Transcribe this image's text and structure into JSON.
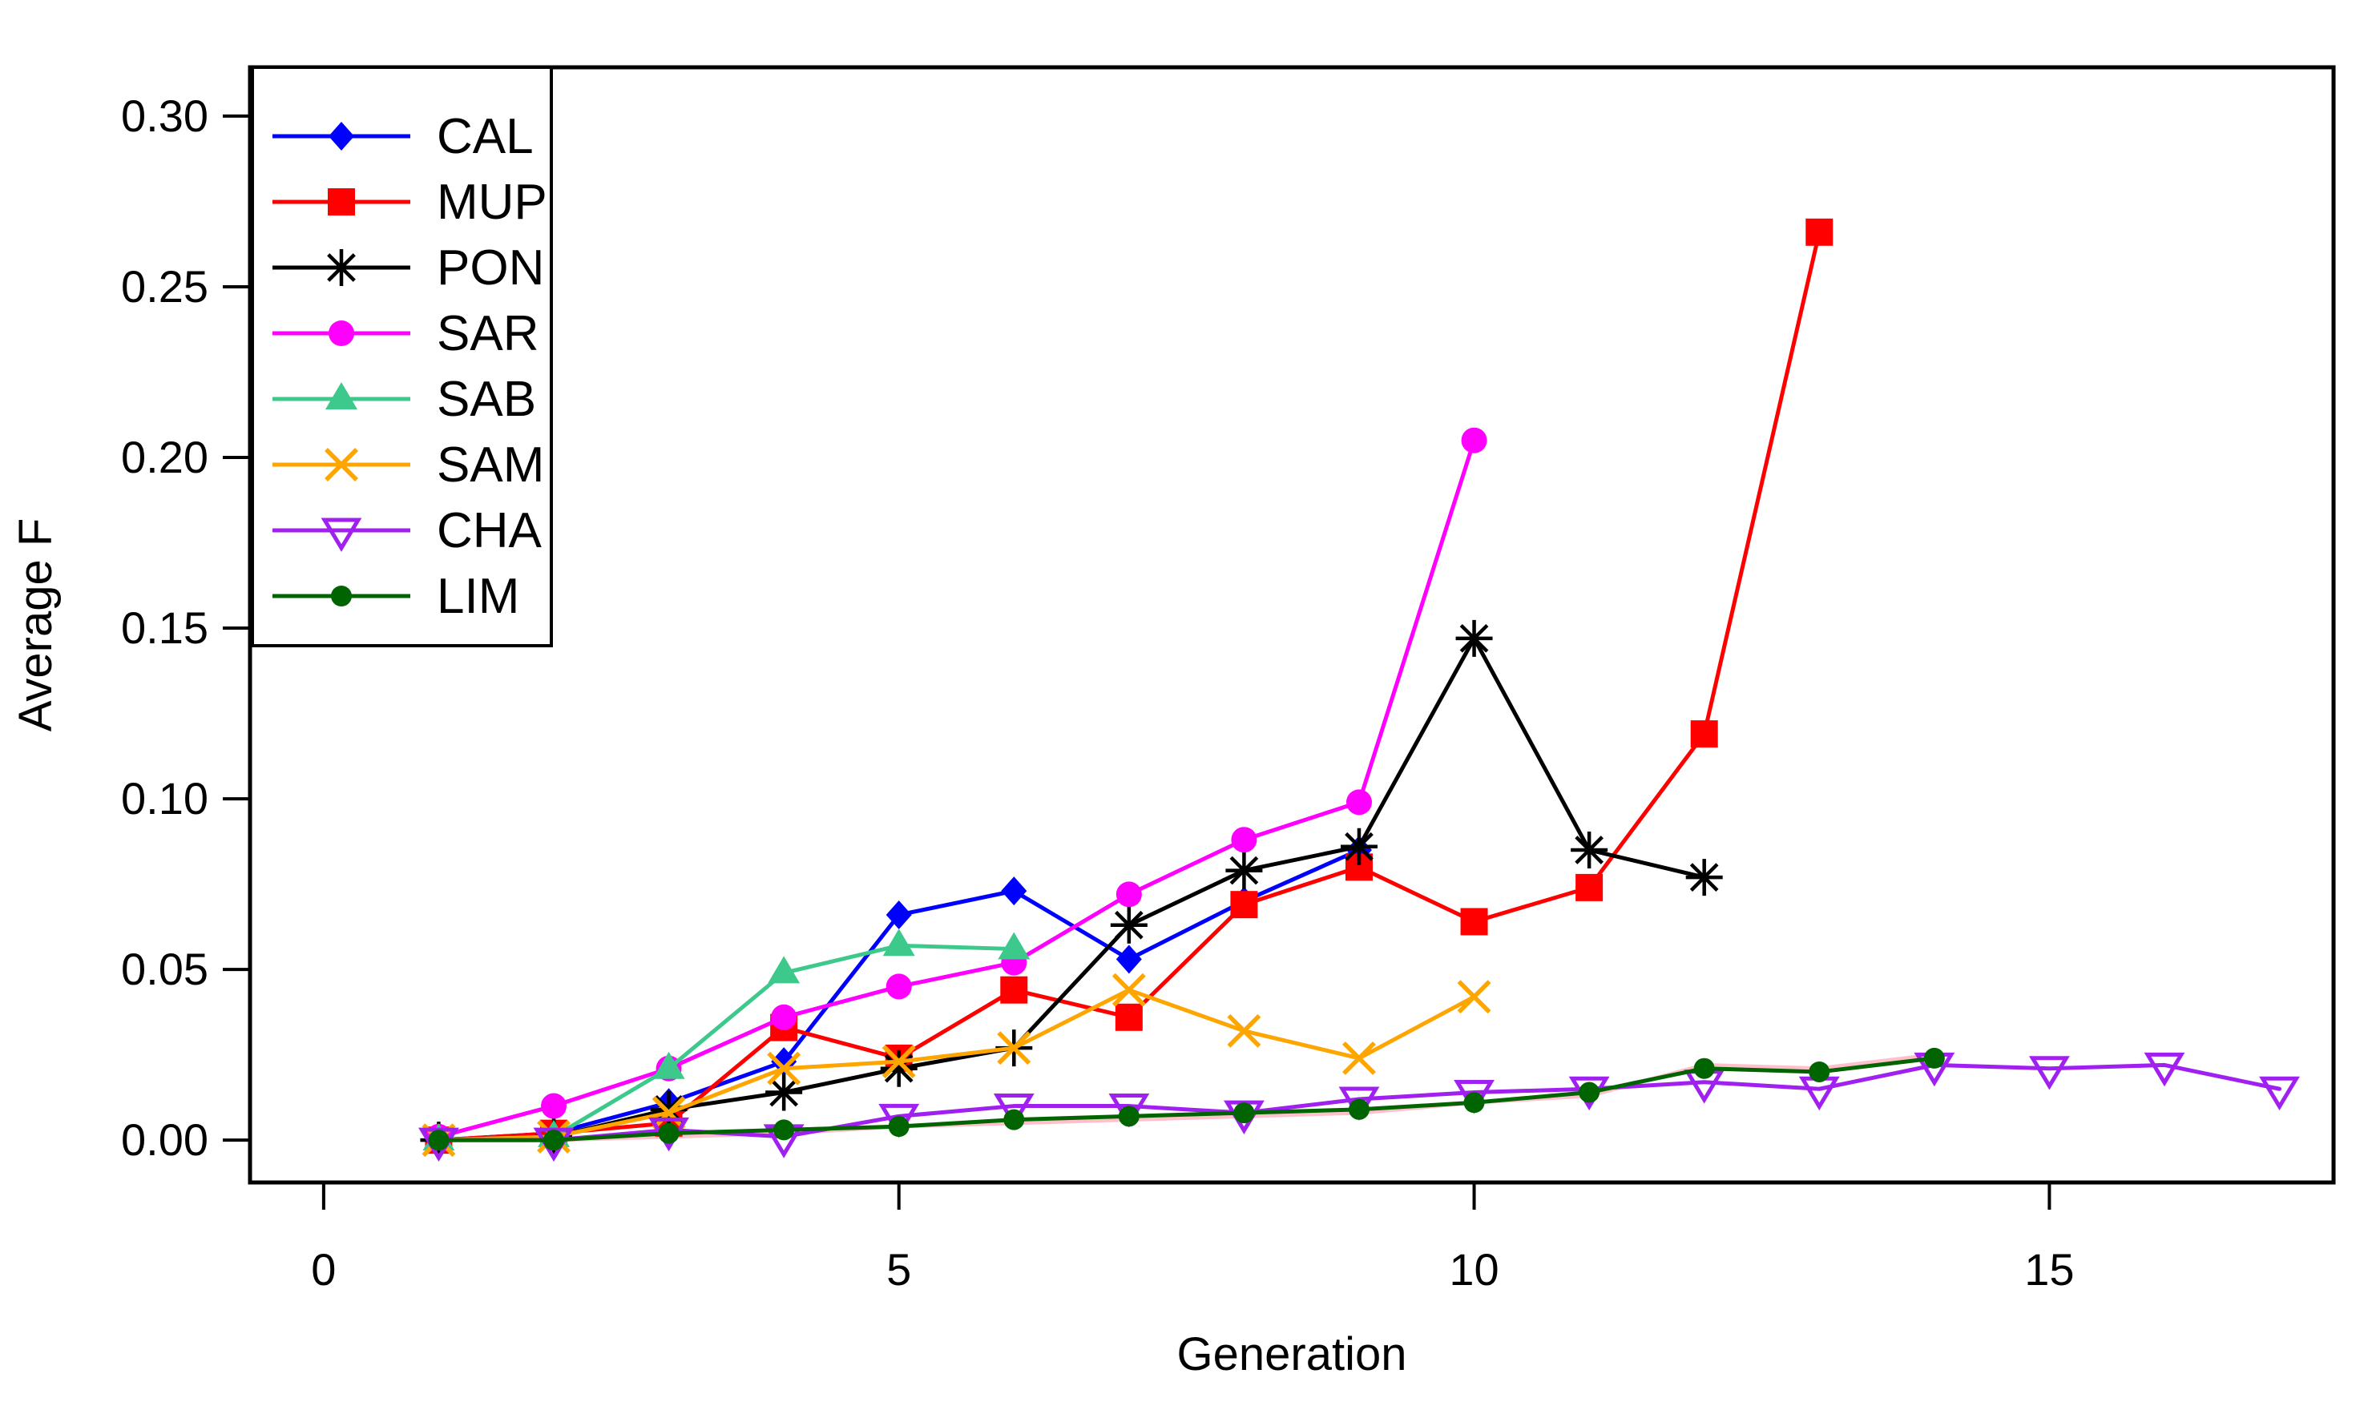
{
  "figure": {
    "background": "#ffffff",
    "axis_color": "#000000"
  },
  "chart_data": {
    "type": "line",
    "title": "",
    "xlabel": "Generation",
    "ylabel": "Average F",
    "xlim": [
      -0.64,
      17.47
    ],
    "ylim": [
      -0.0124,
      0.3143
    ],
    "grid": false,
    "legend_position": "top-left",
    "x_ticks": [
      {
        "value": 0,
        "label": "0"
      },
      {
        "value": 5,
        "label": "5"
      },
      {
        "value": 10,
        "label": "10"
      },
      {
        "value": 15,
        "label": "15"
      }
    ],
    "y_ticks": [
      {
        "value": 0.0,
        "label": "0.00"
      },
      {
        "value": 0.05,
        "label": "0.05"
      },
      {
        "value": 0.1,
        "label": "0.10"
      },
      {
        "value": 0.15,
        "label": "0.15"
      },
      {
        "value": 0.2,
        "label": "0.20"
      },
      {
        "value": 0.25,
        "label": "0.25"
      },
      {
        "value": 0.3,
        "label": "0.30"
      }
    ],
    "series": [
      {
        "name": "CAL",
        "color": "#0000FF",
        "marker": "diamond",
        "in_legend": true,
        "x": [
          1,
          2,
          3,
          4,
          5,
          6,
          7,
          8,
          9
        ],
        "values": [
          0.0,
          0.002,
          0.011,
          0.023,
          0.066,
          0.073,
          0.053,
          0.07,
          0.085
        ]
      },
      {
        "name": "MUP",
        "color": "#FF0000",
        "marker": "square",
        "in_legend": true,
        "x": [
          1,
          2,
          3,
          4,
          5,
          6,
          7,
          8,
          9,
          10,
          11,
          12,
          13
        ],
        "values": [
          0.0,
          0.002,
          0.005,
          0.033,
          0.024,
          0.044,
          0.036,
          0.069,
          0.08,
          0.064,
          0.074,
          0.119,
          0.266
        ]
      },
      {
        "name": "PON",
        "color": "#000000",
        "marker": "asterisk",
        "in_legend": true,
        "x": [
          1,
          2,
          3,
          4,
          5,
          6,
          7,
          8,
          9,
          10,
          11,
          12
        ],
        "values": [
          0.0,
          0.001,
          0.009,
          0.014,
          0.021,
          0.027,
          0.063,
          0.079,
          0.086,
          0.147,
          0.085,
          0.077
        ]
      },
      {
        "name": "SAR",
        "color": "#FF00FF",
        "marker": "circle",
        "in_legend": true,
        "x": [
          1,
          2,
          3,
          4,
          5,
          6,
          7,
          8,
          9,
          10
        ],
        "values": [
          0.001,
          0.01,
          0.021,
          0.036,
          0.045,
          0.052,
          0.072,
          0.088,
          0.099,
          0.205
        ]
      },
      {
        "name": "SAB",
        "color": "#3DC98B",
        "marker": "triangle-up",
        "in_legend": true,
        "x": [
          1,
          2,
          3,
          4,
          5,
          6
        ],
        "values": [
          0.0,
          0.001,
          0.021,
          0.049,
          0.057,
          0.056
        ]
      },
      {
        "name": "SAM",
        "color": "#FFA500",
        "marker": "x-cross",
        "in_legend": true,
        "x": [
          1,
          2,
          3,
          4,
          5,
          6,
          7,
          8,
          9,
          10
        ],
        "values": [
          0.0,
          0.001,
          0.008,
          0.021,
          0.023,
          0.027,
          0.044,
          0.032,
          0.024,
          0.042
        ]
      },
      {
        "name": "CHA",
        "color": "#A020F0",
        "marker": "triangle-down-open",
        "in_legend": true,
        "x": [
          1,
          2,
          3,
          4,
          5,
          6,
          7,
          8,
          9,
          10,
          11,
          12,
          13,
          14,
          15,
          16,
          17
        ],
        "values": [
          0.0,
          0.0,
          0.003,
          0.001,
          0.007,
          0.01,
          0.01,
          0.008,
          0.012,
          0.014,
          0.015,
          0.017,
          0.015,
          0.022,
          0.021,
          0.022,
          0.015
        ]
      },
      {
        "name": "LIM",
        "color": "#006400",
        "marker": "dot",
        "in_legend": true,
        "x": [
          1,
          2,
          3,
          4,
          5,
          6,
          7,
          8,
          9,
          10,
          11,
          12,
          13,
          14
        ],
        "values": [
          0.0,
          0.0,
          0.002,
          0.003,
          0.004,
          0.006,
          0.007,
          0.008,
          0.009,
          0.011,
          0.014,
          0.021,
          0.02,
          0.024
        ]
      },
      {
        "name": "unlabeled-pink",
        "color": "#FFC0CB",
        "marker": "none",
        "in_legend": false,
        "x": [
          1,
          2,
          3,
          4,
          5,
          6,
          7,
          8,
          9,
          10,
          11,
          12,
          13,
          14
        ],
        "values": [
          0.0,
          0.0,
          0.001,
          0.002,
          0.004,
          0.005,
          0.006,
          0.007,
          0.008,
          0.011,
          0.013,
          0.022,
          0.021,
          0.025
        ]
      }
    ],
    "legend_entries": [
      "CAL",
      "MUP",
      "PON",
      "SAR",
      "SAB",
      "SAM",
      "CHA",
      "LIM"
    ]
  }
}
